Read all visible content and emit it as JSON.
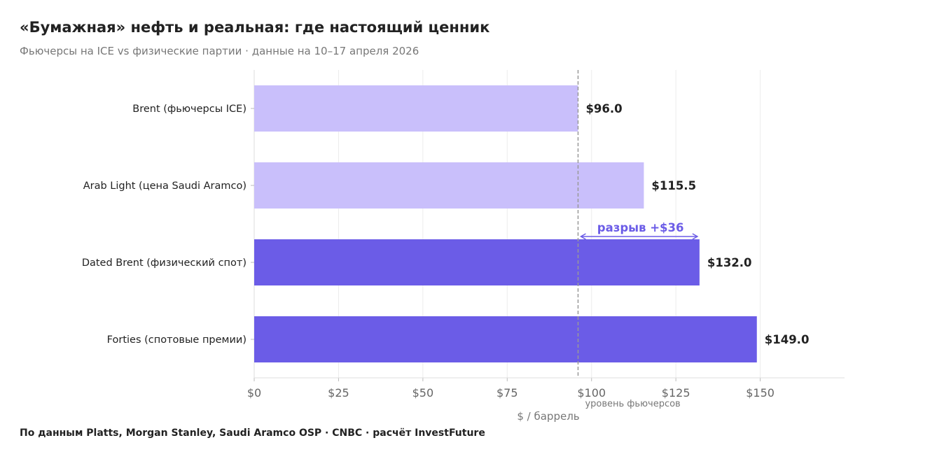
{
  "title": "«Бумажная» нефть и реальная: где настоящий ценник",
  "subtitle": "Фьючерсы на ICE vs физические партии · данные на 10–17 апреля 2026",
  "source": "По данным Platts, Morgan Stanley, Saudi Aramco OSP · CNBC · расчёт InvestFuture",
  "chart_data": {
    "type": "bar",
    "orientation": "horizontal",
    "categories": [
      "Brent (фьючерсы ICE)",
      "Arab Light (цена Saudi Aramco)",
      "Dated Brent (физический спот)",
      "Forties (спотовые премии)"
    ],
    "values": [
      96.0,
      115.5,
      132.0,
      149.0
    ],
    "data_labels": [
      "$96.0",
      "$115.5",
      "$132.0",
      "$149.0"
    ],
    "colors": [
      "#c9bffb",
      "#c9bffb",
      "#6b5ce7",
      "#6b5ce7"
    ],
    "xlabel": "$ / баррель",
    "xlim": [
      0,
      175
    ],
    "xticks": [
      0,
      25,
      50,
      75,
      100,
      125,
      150
    ],
    "xtick_labels": [
      "$0",
      "$25",
      "$50",
      "$75",
      "$100",
      "$125",
      "$150"
    ],
    "grid": "vertical",
    "reference_line": {
      "value": 96,
      "label": "уровень фьючерсов",
      "style": "dashed",
      "color": "#999999"
    },
    "annotation": {
      "text": "разрыв +$36",
      "from": 96,
      "to": 132,
      "color": "#6b5ce7"
    }
  }
}
